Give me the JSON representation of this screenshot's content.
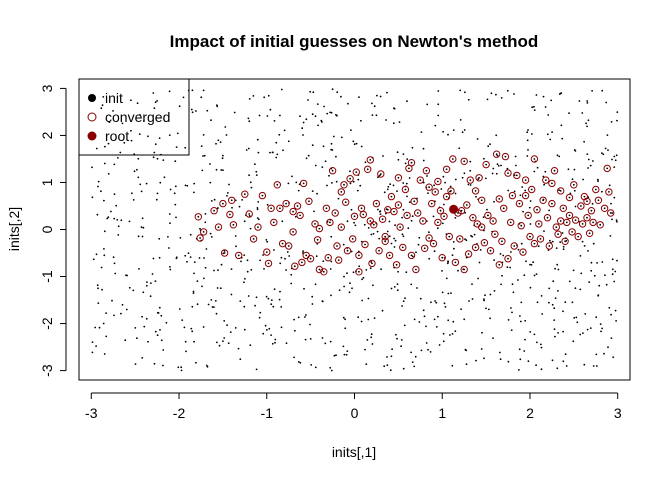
{
  "chart_data": {
    "type": "scatter",
    "title": "Impact of initial guesses on Newton's method",
    "xlabel": "inits[,1]",
    "ylabel": "inits[,2]",
    "xlim": [
      -3.14,
      3.14
    ],
    "ylim": [
      -3.2,
      3.2
    ],
    "xticks": [
      -3,
      -2,
      -1,
      0,
      1,
      2,
      3
    ],
    "yticks": [
      -3,
      -2,
      -1,
      0,
      1,
      2,
      3
    ],
    "legend": {
      "position": "top-left",
      "entries": [
        {
          "label": "init",
          "symbol": "filled-circle",
          "color": "#000000"
        },
        {
          "label": "converged",
          "symbol": "open-circle",
          "color": "#8b0000"
        },
        {
          "label": "root",
          "symbol": "filled-circle",
          "color": "#8b0000"
        }
      ]
    },
    "series": [
      {
        "name": "init",
        "color": "#000000",
        "marker": "dot",
        "note_sampling": "random-uniform",
        "count": 1000,
        "x_range": [
          -3,
          3
        ],
        "y_range": [
          -3,
          3
        ]
      },
      {
        "name": "converged",
        "color": "#8b0000",
        "marker": "open-circle",
        "points": [
          [
            -1.78,
            0.27
          ],
          [
            -1.72,
            -0.05
          ],
          [
            -1.76,
            -0.18
          ],
          [
            -1.6,
            0.4
          ],
          [
            -1.55,
            0.05
          ],
          [
            -1.5,
            0.55
          ],
          [
            -1.48,
            -0.5
          ],
          [
            -1.4,
            0.62
          ],
          [
            -1.38,
            0.1
          ],
          [
            -1.32,
            -0.55
          ],
          [
            -1.25,
            0.75
          ],
          [
            -1.2,
            0.33
          ],
          [
            -1.15,
            -0.2
          ],
          [
            -1.1,
            0.05
          ],
          [
            -1.05,
            0.72
          ],
          [
            -1.0,
            -0.48
          ],
          [
            -0.95,
            0.45
          ],
          [
            -0.92,
            0.15
          ],
          [
            -0.88,
            0.95
          ],
          [
            -0.85,
            0.45
          ],
          [
            -0.82,
            -0.3
          ],
          [
            -0.78,
            0.55
          ],
          [
            -0.75,
            -0.35
          ],
          [
            -0.7,
            0.38
          ],
          [
            -0.68,
            -0.78
          ],
          [
            -0.65,
            0.5
          ],
          [
            -0.62,
            0.3
          ],
          [
            -0.6,
            -0.7
          ],
          [
            -0.55,
            -0.55
          ],
          [
            -0.52,
            0.6
          ],
          [
            -0.5,
            -0.62
          ],
          [
            -0.45,
            0.12
          ],
          [
            -0.42,
            -0.22
          ],
          [
            -0.4,
            -0.85
          ],
          [
            -0.35,
            -0.9
          ],
          [
            -0.32,
            0.45
          ],
          [
            -0.3,
            -0.6
          ],
          [
            -0.28,
            0.15
          ],
          [
            -0.22,
            0.35
          ],
          [
            -0.2,
            -0.35
          ],
          [
            -0.18,
            -0.65
          ],
          [
            -0.15,
            0.8
          ],
          [
            -0.12,
            0.95
          ],
          [
            -0.1,
            0.58
          ],
          [
            -0.08,
            -0.45
          ],
          [
            -0.05,
            1.08
          ],
          [
            -0.02,
            -0.2
          ],
          [
            0.0,
            0.28
          ],
          [
            0.02,
            1.22
          ],
          [
            0.05,
            -0.55
          ],
          [
            0.08,
            0.45
          ],
          [
            0.1,
            0.32
          ],
          [
            0.12,
            -0.32
          ],
          [
            0.15,
            1.28
          ],
          [
            0.18,
            0.18
          ],
          [
            0.2,
            -0.72
          ],
          [
            0.22,
            0.1
          ],
          [
            0.25,
            0.55
          ],
          [
            0.28,
            -0.45
          ],
          [
            0.3,
            1.18
          ],
          [
            0.32,
            0.22
          ],
          [
            0.35,
            -0.15
          ],
          [
            0.38,
            0.42
          ],
          [
            0.4,
            -0.55
          ],
          [
            0.42,
            0.7
          ],
          [
            0.45,
            0.38
          ],
          [
            0.48,
            -0.75
          ],
          [
            0.5,
            1.1
          ],
          [
            0.52,
            0.05
          ],
          [
            0.55,
            -0.38
          ],
          [
            0.58,
            0.85
          ],
          [
            0.6,
            0.3
          ],
          [
            0.62,
            1.3
          ],
          [
            0.65,
            -0.55
          ],
          [
            0.68,
            0.6
          ],
          [
            0.7,
            -0.85
          ],
          [
            0.72,
            0.35
          ],
          [
            0.75,
            1.05
          ],
          [
            0.78,
            0.18
          ],
          [
            0.8,
            -0.4
          ],
          [
            0.82,
            1.25
          ],
          [
            0.85,
            0.9
          ],
          [
            0.88,
            0.55
          ],
          [
            0.9,
            -0.3
          ],
          [
            0.92,
            0.8
          ],
          [
            0.95,
            1.02
          ],
          [
            0.98,
            0.4
          ],
          [
            1.0,
            -0.6
          ],
          [
            1.02,
            0.28
          ],
          [
            1.05,
            0.7
          ],
          [
            1.08,
            -0.15
          ],
          [
            1.1,
            0.82
          ],
          [
            1.12,
            1.5
          ],
          [
            1.15,
            -0.7
          ],
          [
            1.18,
            0.35
          ],
          [
            1.2,
            -0.2
          ],
          [
            1.22,
            0.4
          ],
          [
            1.25,
            1.45
          ],
          [
            1.28,
            0.52
          ],
          [
            1.3,
            -0.52
          ],
          [
            1.32,
            1.05
          ],
          [
            1.35,
            0.25
          ],
          [
            1.38,
            -0.38
          ],
          [
            1.4,
            0.12
          ],
          [
            1.42,
            1.1
          ],
          [
            1.45,
            0.05
          ],
          [
            1.48,
            -0.28
          ],
          [
            1.5,
            1.38
          ],
          [
            1.52,
            0.3
          ],
          [
            1.55,
            -0.45
          ],
          [
            1.58,
            0.18
          ],
          [
            1.6,
            -0.1
          ],
          [
            1.62,
            1.6
          ],
          [
            1.65,
            0.65
          ],
          [
            1.68,
            -0.25
          ],
          [
            1.7,
            0.45
          ],
          [
            1.72,
            1.55
          ],
          [
            1.75,
            -0.62
          ],
          [
            1.78,
            0.15
          ],
          [
            1.8,
            0.72
          ],
          [
            1.82,
            -0.35
          ],
          [
            1.85,
            1.15
          ],
          [
            1.88,
            0.55
          ],
          [
            1.9,
            0.08
          ],
          [
            1.92,
            -0.48
          ],
          [
            1.95,
            1.05
          ],
          [
            1.98,
            0.3
          ],
          [
            2.0,
            -0.15
          ],
          [
            2.02,
            0.85
          ],
          [
            2.05,
            1.5
          ],
          [
            2.08,
            0.42
          ],
          [
            2.1,
            0.12
          ],
          [
            2.12,
            -0.2
          ],
          [
            2.15,
            0.62
          ],
          [
            2.18,
            1.05
          ],
          [
            2.2,
            0.25
          ],
          [
            2.22,
            -0.35
          ],
          [
            2.25,
            0.55
          ],
          [
            2.28,
            1.25
          ],
          [
            2.3,
            0.05
          ],
          [
            2.32,
            -0.1
          ],
          [
            2.35,
            0.82
          ],
          [
            2.38,
            0.45
          ],
          [
            2.4,
            -0.25
          ],
          [
            2.42,
            0.15
          ],
          [
            2.45,
            0.3
          ],
          [
            2.48,
            -0.05
          ],
          [
            2.5,
            0.95
          ],
          [
            2.52,
            0.2
          ],
          [
            2.55,
            -0.15
          ],
          [
            2.58,
            0.5
          ],
          [
            2.6,
            0.12
          ],
          [
            2.62,
            0.7
          ],
          [
            2.65,
            0.25
          ],
          [
            2.68,
            -0.08
          ],
          [
            2.7,
            0.4
          ],
          [
            2.72,
            0.15
          ],
          [
            2.75,
            0.85
          ],
          [
            2.78,
            0.62
          ],
          [
            2.8,
            0.1
          ],
          [
            2.85,
            0.45
          ],
          [
            2.88,
            1.3
          ],
          [
            2.9,
            0.8
          ],
          [
            2.92,
            0.35
          ],
          [
            -1.42,
            0.32
          ],
          [
            -0.98,
            -0.72
          ],
          [
            -0.58,
            0.98
          ],
          [
            -0.25,
            1.25
          ],
          [
            0.18,
            1.48
          ],
          [
            0.65,
            1.42
          ],
          [
            1.05,
            1.28
          ],
          [
            1.38,
            0.82
          ],
          [
            1.75,
            1.2
          ],
          [
            2.25,
            0.98
          ],
          [
            2.65,
            0.6
          ],
          [
            -0.4,
            0.02
          ],
          [
            0.05,
            -0.9
          ],
          [
            0.35,
            -0.25
          ],
          [
            0.85,
            -0.18
          ],
          [
            1.25,
            -0.85
          ],
          [
            1.65,
            -0.75
          ],
          [
            2.05,
            -0.3
          ],
          [
            2.45,
            0.68
          ],
          [
            -0.7,
            -0.05
          ],
          [
            -0.15,
            0.05
          ],
          [
            0.5,
            0.52
          ],
          [
            0.95,
            0.15
          ],
          [
            1.45,
            0.62
          ],
          [
            1.95,
            0.72
          ],
          [
            2.35,
            0.18
          ]
        ]
      },
      {
        "name": "root",
        "color": "#8b0000",
        "marker": "filled-circle",
        "points": [
          [
            1.13,
            0.43
          ]
        ]
      }
    ]
  }
}
